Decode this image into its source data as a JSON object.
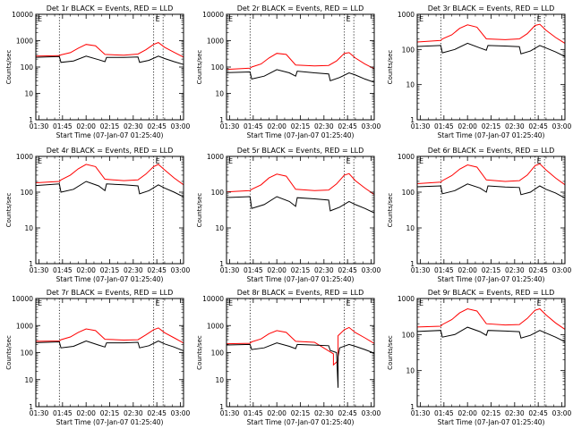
{
  "chart_data": [
    {
      "type": "line",
      "title": "Det 1r BLACK = Events, RED = LLD",
      "xlabel": "Start Time (07-Jan-07 01:25:40)",
      "ylabel": "Counts/sec",
      "yscale": "log",
      "ylim": [
        1,
        10000
      ],
      "xlim": [
        "01:30",
        "03:00"
      ],
      "x_ticks": [
        "01:30",
        "01:45",
        "02:00",
        "02:15",
        "02:30",
        "02:45",
        "03:00"
      ],
      "y_ticks": [
        "1",
        "10",
        "100",
        "1000",
        "10000"
      ],
      "vlines": [
        "01:43",
        "02:43",
        "02:49"
      ],
      "corner_marks": [
        "E",
        "E"
      ],
      "series": [
        {
          "color": "#ff0000",
          "x": [
            "01:25",
            "01:43",
            "01:44",
            "01:50",
            "01:55",
            "02:00",
            "02:06",
            "02:12",
            "02:24",
            "02:33",
            "02:38",
            "02:43",
            "02:46",
            "02:50",
            "02:56",
            "03:03"
          ],
          "y": [
            260,
            270,
            290,
            350,
            520,
            720,
            640,
            300,
            280,
            310,
            450,
            720,
            850,
            560,
            360,
            220
          ]
        },
        {
          "color": "#000000",
          "x": [
            "01:25",
            "01:43",
            "01:44",
            "01:52",
            "02:00",
            "02:08",
            "02:12",
            "02:13",
            "02:24",
            "02:33",
            "02:34",
            "02:40",
            "02:46",
            "02:50",
            "02:56",
            "03:03"
          ],
          "y": [
            230,
            250,
            150,
            170,
            260,
            190,
            160,
            230,
            230,
            240,
            150,
            180,
            260,
            210,
            160,
            120
          ]
        }
      ]
    },
    {
      "type": "line",
      "title": "Det 2r BLACK = Events, RED = LLD",
      "xlabel": "Start Time (07-Jan-07 01:25:40)",
      "ylabel": "Counts/sec",
      "yscale": "log",
      "ylim": [
        1,
        10000
      ],
      "xlim": [
        "01:30",
        "03:00"
      ],
      "x_ticks": [
        "01:30",
        "01:45",
        "02:00",
        "02:15",
        "02:30",
        "02:45",
        "03:00"
      ],
      "y_ticks": [
        "1",
        "10",
        "100",
        "1000",
        "10000"
      ],
      "vlines": [
        "01:43",
        "02:43",
        "02:49"
      ],
      "corner_marks": [
        "E",
        "E"
      ],
      "series": [
        {
          "color": "#ff0000",
          "x": [
            "01:25",
            "01:43",
            "01:44",
            "01:50",
            "01:55",
            "02:00",
            "02:06",
            "02:12",
            "02:24",
            "02:33",
            "02:38",
            "02:43",
            "02:46",
            "02:50",
            "02:56",
            "03:03"
          ],
          "y": [
            80,
            90,
            100,
            130,
            220,
            330,
            300,
            120,
            110,
            115,
            170,
            330,
            350,
            220,
            130,
            80
          ]
        },
        {
          "color": "#000000",
          "x": [
            "01:25",
            "01:43",
            "01:44",
            "01:52",
            "02:00",
            "02:08",
            "02:12",
            "02:13",
            "02:24",
            "02:33",
            "02:34",
            "02:40",
            "02:46",
            "02:50",
            "02:56",
            "03:03"
          ],
          "y": [
            60,
            65,
            35,
            45,
            80,
            60,
            45,
            70,
            60,
            55,
            30,
            40,
            60,
            50,
            35,
            25
          ]
        }
      ]
    },
    {
      "type": "line",
      "title": "Det 3r BLACK = Events, RED = LLD",
      "xlabel": "Start Time (07-Jan-07 01:25:40)",
      "ylabel": "Counts/sec",
      "yscale": "log",
      "ylim": [
        1,
        1000
      ],
      "xlim": [
        "01:30",
        "03:00"
      ],
      "x_ticks": [
        "01:30",
        "01:45",
        "02:00",
        "02:15",
        "02:30",
        "02:45",
        "03:00"
      ],
      "y_ticks": [
        "1",
        "10",
        "100",
        "1000"
      ],
      "vlines": [
        "01:43",
        "02:43",
        "02:49"
      ],
      "corner_marks": [
        "E",
        "E"
      ],
      "series": [
        {
          "color": "#ff0000",
          "x": [
            "01:25",
            "01:43",
            "01:44",
            "01:50",
            "01:55",
            "02:00",
            "02:06",
            "02:12",
            "02:24",
            "02:33",
            "02:38",
            "02:43",
            "02:46",
            "02:50",
            "02:56",
            "03:03"
          ],
          "y": [
            160,
            180,
            200,
            260,
            400,
            500,
            430,
            200,
            190,
            200,
            280,
            480,
            520,
            350,
            220,
            140
          ]
        },
        {
          "color": "#000000",
          "x": [
            "01:25",
            "01:43",
            "01:44",
            "01:52",
            "02:00",
            "02:08",
            "02:12",
            "02:13",
            "02:24",
            "02:33",
            "02:34",
            "02:40",
            "02:46",
            "02:50",
            "02:56",
            "03:03"
          ],
          "y": [
            120,
            130,
            80,
            100,
            150,
            110,
            95,
            130,
            125,
            120,
            75,
            90,
            130,
            110,
            85,
            60
          ]
        }
      ]
    },
    {
      "type": "line",
      "title": "Det 4r BLACK = Events, RED = LLD",
      "xlabel": "Start Time (07-Jan-07 01:25:40)",
      "ylabel": "Counts/sec",
      "yscale": "log",
      "ylim": [
        1,
        1000
      ],
      "xlim": [
        "01:30",
        "03:00"
      ],
      "x_ticks": [
        "01:30",
        "01:45",
        "02:00",
        "02:15",
        "02:30",
        "02:45",
        "03:00"
      ],
      "y_ticks": [
        "1",
        "10",
        "100",
        "1000"
      ],
      "vlines": [
        "01:43",
        "02:43",
        "02:49"
      ],
      "corner_marks": [
        "E",
        "E"
      ],
      "series": [
        {
          "color": "#ff0000",
          "x": [
            "01:25",
            "01:43",
            "01:44",
            "01:50",
            "01:55",
            "02:00",
            "02:06",
            "02:12",
            "02:24",
            "02:33",
            "02:38",
            "02:43",
            "02:46",
            "02:50",
            "02:56",
            "03:03"
          ],
          "y": [
            180,
            200,
            220,
            300,
            450,
            600,
            520,
            230,
            210,
            220,
            320,
            520,
            600,
            420,
            250,
            150
          ]
        },
        {
          "color": "#000000",
          "x": [
            "01:25",
            "01:43",
            "01:44",
            "01:52",
            "02:00",
            "02:08",
            "02:12",
            "02:13",
            "02:24",
            "02:33",
            "02:34",
            "02:40",
            "02:46",
            "02:50",
            "02:56",
            "03:03"
          ],
          "y": [
            150,
            170,
            100,
            120,
            200,
            150,
            110,
            170,
            160,
            150,
            90,
            110,
            160,
            130,
            100,
            70
          ]
        }
      ]
    },
    {
      "type": "line",
      "title": "Det 5r BLACK = Events, RED = LLD",
      "xlabel": "Start Time (07-Jan-07 01:25:40)",
      "ylabel": "Counts/sec",
      "yscale": "log",
      "ylim": [
        1,
        1000
      ],
      "xlim": [
        "01:30",
        "03:00"
      ],
      "x_ticks": [
        "01:30",
        "01:45",
        "02:00",
        "02:15",
        "02:30",
        "02:45",
        "03:00"
      ],
      "y_ticks": [
        "1",
        "10",
        "100",
        "1000"
      ],
      "vlines": [
        "01:43",
        "02:43",
        "02:49"
      ],
      "corner_marks": [
        "E",
        "E"
      ],
      "series": [
        {
          "color": "#ff0000",
          "x": [
            "01:25",
            "01:43",
            "01:44",
            "01:50",
            "01:55",
            "02:00",
            "02:06",
            "02:12",
            "02:24",
            "02:33",
            "02:38",
            "02:43",
            "02:46",
            "02:50",
            "02:56",
            "03:03"
          ],
          "y": [
            100,
            110,
            120,
            160,
            250,
            320,
            280,
            120,
            110,
            115,
            170,
            300,
            330,
            210,
            130,
            80
          ]
        },
        {
          "color": "#000000",
          "x": [
            "01:25",
            "01:43",
            "01:44",
            "01:52",
            "02:00",
            "02:08",
            "02:12",
            "02:13",
            "02:24",
            "02:33",
            "02:34",
            "02:40",
            "02:46",
            "02:50",
            "02:56",
            "03:03"
          ],
          "y": [
            70,
            75,
            35,
            45,
            75,
            55,
            40,
            70,
            65,
            60,
            30,
            38,
            55,
            45,
            35,
            25
          ]
        }
      ]
    },
    {
      "type": "line",
      "title": "Det 6r BLACK = Events, RED = LLD",
      "xlabel": "Start Time (07-Jan-07 01:25:40)",
      "ylabel": "Counts/sec",
      "yscale": "log",
      "ylim": [
        1,
        1000
      ],
      "xlim": [
        "01:30",
        "03:00"
      ],
      "x_ticks": [
        "01:30",
        "01:45",
        "02:00",
        "02:15",
        "02:30",
        "02:45",
        "03:00"
      ],
      "y_ticks": [
        "1",
        "10",
        "100",
        "1000"
      ],
      "vlines": [
        "01:43",
        "02:43",
        "02:49"
      ],
      "corner_marks": [
        "E",
        "E"
      ],
      "series": [
        {
          "color": "#ff0000",
          "x": [
            "01:25",
            "01:43",
            "01:44",
            "01:50",
            "01:55",
            "02:00",
            "02:06",
            "02:12",
            "02:24",
            "02:33",
            "02:38",
            "02:43",
            "02:46",
            "02:50",
            "02:56",
            "03:03"
          ],
          "y": [
            170,
            190,
            210,
            290,
            440,
            580,
            500,
            220,
            200,
            210,
            300,
            550,
            620,
            420,
            250,
            150
          ]
        },
        {
          "color": "#000000",
          "x": [
            "01:25",
            "01:43",
            "01:44",
            "01:52",
            "02:00",
            "02:08",
            "02:12",
            "02:13",
            "02:24",
            "02:33",
            "02:34",
            "02:40",
            "02:46",
            "02:50",
            "02:56",
            "03:03"
          ],
          "y": [
            140,
            150,
            90,
            110,
            170,
            130,
            100,
            150,
            140,
            135,
            85,
            100,
            150,
            120,
            95,
            65
          ]
        }
      ]
    },
    {
      "type": "line",
      "title": "Det 7r BLACK = Events, RED = LLD",
      "xlabel": "Start Time (07-Jan-07 01:25:40)",
      "ylabel": "Counts/sec",
      "yscale": "log",
      "ylim": [
        1,
        10000
      ],
      "xlim": [
        "01:30",
        "03:00"
      ],
      "x_ticks": [
        "01:30",
        "01:45",
        "02:00",
        "02:15",
        "02:30",
        "02:45",
        "03:00"
      ],
      "y_ticks": [
        "1",
        "10",
        "100",
        "1000",
        "10000"
      ],
      "vlines": [
        "01:43",
        "02:43",
        "02:49"
      ],
      "corner_marks": [
        "E",
        "E"
      ],
      "series": [
        {
          "color": "#ff0000",
          "x": [
            "01:25",
            "01:43",
            "01:44",
            "01:50",
            "01:55",
            "02:00",
            "02:06",
            "02:12",
            "02:24",
            "02:33",
            "02:38",
            "02:43",
            "02:46",
            "02:50",
            "02:56",
            "03:03"
          ],
          "y": [
            260,
            270,
            300,
            380,
            560,
            750,
            650,
            310,
            290,
            300,
            450,
            700,
            820,
            540,
            350,
            210
          ]
        },
        {
          "color": "#000000",
          "x": [
            "01:25",
            "01:43",
            "01:44",
            "01:52",
            "02:00",
            "02:08",
            "02:12",
            "02:13",
            "02:24",
            "02:33",
            "02:34",
            "02:40",
            "02:46",
            "02:50",
            "02:56",
            "03:03"
          ],
          "y": [
            230,
            250,
            150,
            170,
            270,
            190,
            160,
            230,
            230,
            240,
            150,
            180,
            270,
            210,
            160,
            110
          ]
        }
      ]
    },
    {
      "type": "line",
      "title": "Det 8r BLACK = Events, RED = LLD",
      "xlabel": "Start Time (07-Jan-07 01:25:40)",
      "ylabel": "Counts/sec",
      "yscale": "log",
      "ylim": [
        1,
        10000
      ],
      "xlim": [
        "01:30",
        "03:00"
      ],
      "x_ticks": [
        "01:30",
        "01:45",
        "02:00",
        "02:15",
        "02:30",
        "02:45",
        "03:00"
      ],
      "y_ticks": [
        "1",
        "10",
        "100",
        "1000",
        "10000"
      ],
      "vlines": [
        "01:43",
        "02:43",
        "02:49"
      ],
      "corner_marks": [
        "E",
        "E"
      ],
      "series": [
        {
          "color": "#ff0000",
          "x": [
            "01:25",
            "01:43",
            "01:44",
            "01:50",
            "01:55",
            "02:00",
            "02:06",
            "02:12",
            "02:24",
            "02:36",
            "02:36",
            "02:39",
            "02:39",
            "02:43",
            "02:46",
            "02:50",
            "02:56",
            "03:03"
          ],
          "y": [
            210,
            220,
            250,
            320,
            500,
            650,
            560,
            260,
            240,
            90,
            35,
            50,
            420,
            700,
            850,
            550,
            350,
            200
          ]
        },
        {
          "color": "#000000",
          "x": [
            "01:25",
            "01:43",
            "01:44",
            "01:52",
            "02:00",
            "02:08",
            "02:12",
            "02:13",
            "02:24",
            "02:33",
            "02:34",
            "02:38",
            "02:39",
            "02:39",
            "02:40",
            "02:46",
            "02:50",
            "02:56",
            "03:03"
          ],
          "y": [
            190,
            200,
            130,
            150,
            230,
            170,
            140,
            200,
            190,
            180,
            120,
            100,
            5,
            70,
            150,
            200,
            170,
            130,
            90
          ]
        }
      ]
    },
    {
      "type": "line",
      "title": "Det 9r BLACK = Events, RED = LLD",
      "xlabel": "Start Time (07-Jan-07 01:25:40)",
      "ylabel": "Counts/sec",
      "yscale": "log",
      "ylim": [
        1,
        1000
      ],
      "xlim": [
        "01:30",
        "03:00"
      ],
      "x_ticks": [
        "01:30",
        "01:45",
        "02:00",
        "02:15",
        "02:30",
        "02:45",
        "03:00"
      ],
      "y_ticks": [
        "1",
        "10",
        "100",
        "1000"
      ],
      "vlines": [
        "01:43",
        "02:43",
        "02:49"
      ],
      "corner_marks": [
        "E",
        "E"
      ],
      "series": [
        {
          "color": "#ff0000",
          "x": [
            "01:25",
            "01:43",
            "01:44",
            "01:50",
            "01:55",
            "02:00",
            "02:06",
            "02:12",
            "02:24",
            "02:33",
            "02:38",
            "02:43",
            "02:46",
            "02:50",
            "02:56",
            "03:03"
          ],
          "y": [
            160,
            170,
            190,
            260,
            400,
            520,
            450,
            200,
            185,
            190,
            280,
            470,
            520,
            350,
            210,
            130
          ]
        },
        {
          "color": "#000000",
          "x": [
            "01:25",
            "01:43",
            "01:44",
            "01:52",
            "02:00",
            "02:08",
            "02:12",
            "02:13",
            "02:24",
            "02:33",
            "02:34",
            "02:40",
            "02:46",
            "02:50",
            "02:56",
            "03:03"
          ],
          "y": [
            120,
            130,
            85,
            100,
            160,
            120,
            95,
            130,
            125,
            120,
            80,
            95,
            130,
            110,
            85,
            60
          ]
        }
      ]
    }
  ]
}
